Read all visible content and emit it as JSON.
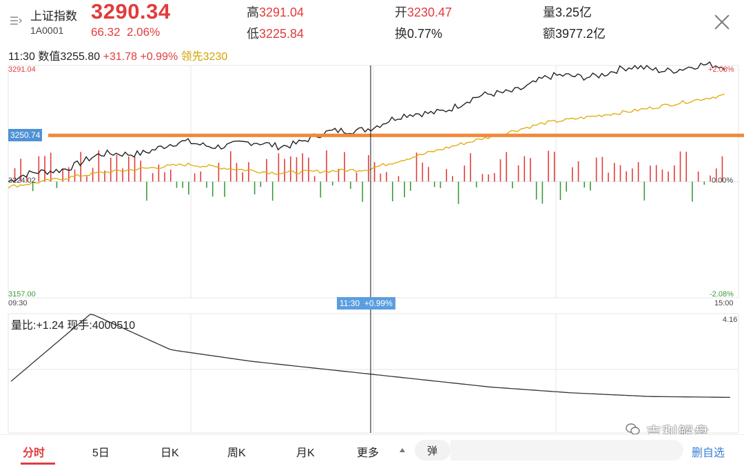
{
  "header": {
    "menu_icon": "list-menu-icon",
    "index_name": "上证指数",
    "index_code": "1A0001",
    "price": "3290.34",
    "change": "66.32",
    "change_pct": "2.06%",
    "high_label": "高",
    "high_value": "3291.04",
    "low_label": "低",
    "low_value": "3225.84",
    "open_label": "开",
    "open_value": "3230.47",
    "turnover_label": "换",
    "turnover_value": "0.77%",
    "volume_label": "量",
    "volume_value": "3.25亿",
    "amount_label": "额",
    "amount_value": "3977.2亿",
    "close_icon": "close-icon"
  },
  "info_line": {
    "time": "11:30",
    "value_label": "数值",
    "value": "3255.80",
    "change": "+31.78",
    "change_pct": "+0.99%",
    "lead_label": "领先",
    "lead_value": "3230"
  },
  "price_axis": {
    "top_left": "3291.04",
    "top_right": "+2.08%",
    "mid_left": "3224.02",
    "mid_right": "0.00%",
    "bottom_left": "3157.00",
    "bottom_right": "-2.08%",
    "time_start": "09:30",
    "time_end": "15:00",
    "price_flag": "3250.74",
    "cursor_time": "11:30",
    "cursor_pct": "+0.99%"
  },
  "volume_panel": {
    "label": "量比:+1.24 现手:4000510",
    "max_value": "4.16"
  },
  "colors": {
    "up": "#e23b3b",
    "down": "#3a9a3a",
    "price_line": "#222222",
    "lead_line": "#e0a800",
    "level_line": "#f08a3c",
    "active_blue": "#3b7fd6"
  },
  "tabs": {
    "items": [
      "分时",
      "5日",
      "日K",
      "周K",
      "月K",
      "更多"
    ],
    "active": "分时",
    "danmu_label": "弹",
    "delete_select": "删自选"
  },
  "watermark": "吉利解盘",
  "watermark_icon": "wechat-icon",
  "chart_data": {
    "type": "line",
    "series": [
      {
        "x": [
          "09:30",
          "10:00",
          "10:30",
          "11:00",
          "11:30",
          "13:30",
          "14:00",
          "14:30",
          "15:00"
        ],
        "values": [
          3224.0,
          3238,
          3246,
          3245,
          3255.8,
          3268,
          3283,
          3289,
          3290.3
        ]
      },
      {
        "x": [
          "09:30",
          "10:00",
          "10:30",
          "11:00",
          "11:30",
          "13:30",
          "14:00",
          "14:30",
          "15:00"
        ],
        "values": [
          3221,
          3229,
          3234,
          3229,
          3231,
          3245,
          3258,
          3265,
          3274
        ]
      }
    ],
    "x_ticks": [
      "09:30",
      "15:00"
    ],
    "ylim": [
      3157.0,
      3291.04
    ],
    "reference_level": 3250.74,
    "volume_ratio": {
      "x_start": "09:30",
      "values": [
        1.8,
        4.16,
        2.9,
        2.5,
        2.2,
        1.9,
        1.6,
        1.4,
        1.27,
        1.24
      ],
      "ymax": 4.16
    }
  }
}
